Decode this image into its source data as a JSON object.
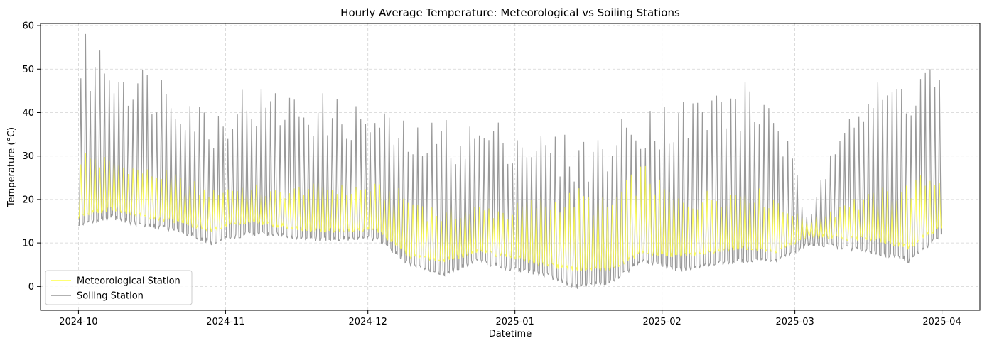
{
  "chart_data": {
    "type": "line",
    "title": "Hourly Average Temperature: Meteorological vs Soiling Stations",
    "xlabel": "Datetime",
    "ylabel": "Temperature (°C)",
    "x_range": [
      "2024-09-23",
      "2025-04-09"
    ],
    "ylim": [
      -5.5,
      60.5
    ],
    "x_ticks": [
      "2024-10",
      "2024-11",
      "2024-12",
      "2025-01",
      "2025-02",
      "2025-03",
      "2025-04"
    ],
    "y_ticks": [
      0,
      10,
      20,
      30,
      40,
      50,
      60
    ],
    "grid": true,
    "legend_position": "lower-left",
    "series": [
      {
        "name": "Meteorological Station",
        "color": "#ffff44",
        "x": [
          "2024-10-01",
          "2024-10-08",
          "2024-10-15",
          "2024-10-22",
          "2024-10-29",
          "2024-11-05",
          "2024-11-12",
          "2024-11-19",
          "2024-11-26",
          "2024-12-03",
          "2024-12-10",
          "2024-12-17",
          "2024-12-24",
          "2024-12-31",
          "2025-01-07",
          "2025-01-14",
          "2025-01-21",
          "2025-01-28",
          "2025-02-04",
          "2025-02-11",
          "2025-02-18",
          "2025-02-25",
          "2025-03-04",
          "2025-03-11",
          "2025-03-18",
          "2025-03-25",
          "2025-04-01"
        ],
        "daily_min": [
          16,
          18,
          16,
          15,
          13,
          15,
          14,
          13,
          13,
          13,
          7,
          6,
          8,
          7,
          5,
          4,
          4,
          8,
          7,
          8,
          9,
          8,
          12,
          11,
          11,
          9,
          14
        ],
        "daily_max": [
          31,
          29,
          27,
          25,
          22,
          23,
          22,
          23,
          23,
          23,
          20,
          17,
          18,
          18,
          20,
          21,
          19,
          27,
          20,
          21,
          23,
          20,
          15,
          19,
          21,
          23,
          26
        ]
      },
      {
        "name": "Soiling Station",
        "color": "#999999",
        "x": [
          "2024-10-01",
          "2024-10-08",
          "2024-10-15",
          "2024-10-22",
          "2024-10-29",
          "2024-11-05",
          "2024-11-12",
          "2024-11-19",
          "2024-11-26",
          "2024-12-03",
          "2024-12-10",
          "2024-12-17",
          "2024-12-24",
          "2024-12-31",
          "2025-01-07",
          "2025-01-14",
          "2025-01-21",
          "2025-01-28",
          "2025-02-04",
          "2025-02-11",
          "2025-02-18",
          "2025-02-25",
          "2025-03-04",
          "2025-03-11",
          "2025-03-18",
          "2025-03-25",
          "2025-04-01"
        ],
        "daily_min": [
          14,
          16,
          14,
          13,
          10,
          12,
          12,
          11,
          11,
          11,
          5,
          3,
          6,
          4,
          3,
          0,
          1,
          6,
          4,
          5,
          6,
          6,
          10,
          9,
          8,
          6,
          12
        ],
        "daily_max": [
          55,
          52,
          48,
          46,
          38,
          44,
          43,
          42,
          40,
          39,
          34,
          36,
          36,
          36,
          33,
          32,
          33,
          40,
          40,
          43,
          44,
          42,
          14,
          43,
          44,
          48,
          52
        ]
      }
    ]
  }
}
